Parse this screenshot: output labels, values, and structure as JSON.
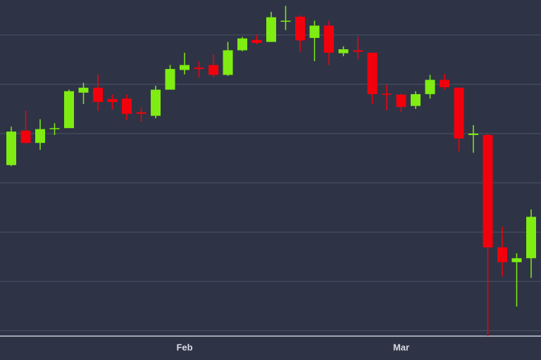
{
  "chart_data": {
    "type": "candlestick",
    "categories": [
      null,
      null,
      null,
      null,
      null,
      null,
      null,
      null,
      null,
      null,
      null,
      null,
      "Feb",
      null,
      null,
      null,
      null,
      null,
      null,
      null,
      null,
      null,
      null,
      null,
      null,
      null,
      null,
      "Mar",
      null,
      null,
      null,
      null,
      null,
      null,
      null,
      null,
      null
    ],
    "open": [
      33.6,
      40.6,
      38.1,
      40.9,
      41.1,
      48.3,
      49.3,
      47.0,
      47.1,
      44.3,
      43.6,
      48.9,
      52.9,
      53.4,
      53.9,
      51.9,
      56.9,
      59.0,
      58.6,
      62.7,
      63.7,
      59.4,
      61.9,
      56.3,
      56.9,
      56.4,
      48.1,
      47.9,
      45.6,
      48.0,
      50.9,
      49.3,
      39.7,
      39.7,
      16.9,
      13.9,
      14.7
    ],
    "high": [
      41.4,
      44.7,
      42.9,
      42.1,
      48.9,
      50.3,
      52.0,
      47.9,
      47.9,
      45.3,
      49.7,
      53.9,
      56.4,
      54.6,
      56.1,
      58.6,
      59.6,
      60.0,
      64.7,
      65.9,
      64.0,
      62.9,
      62.9,
      57.7,
      59.7,
      56.4,
      49.9,
      48.1,
      48.6,
      51.9,
      52.1,
      49.3,
      41.7,
      40.0,
      21.1,
      15.7,
      24.6
    ],
    "low": [
      33.4,
      37.9,
      36.7,
      39.7,
      41.1,
      46.0,
      44.6,
      44.9,
      42.7,
      42.4,
      43.1,
      48.9,
      52.0,
      51.4,
      51.4,
      51.7,
      56.7,
      58.1,
      58.6,
      61.0,
      56.6,
      54.7,
      53.9,
      55.7,
      55.1,
      46.0,
      44.7,
      44.3,
      45.0,
      47.1,
      48.9,
      36.4,
      36.1,
      -1.1,
      11.0,
      4.9,
      10.7
    ],
    "close": [
      40.4,
      38.1,
      40.9,
      41.1,
      48.6,
      49.3,
      46.4,
      46.4,
      44.0,
      44.0,
      48.9,
      53.1,
      53.9,
      53.1,
      51.9,
      56.9,
      59.3,
      58.4,
      63.6,
      62.9,
      58.9,
      61.9,
      56.4,
      57.1,
      56.6,
      48.0,
      47.9,
      45.4,
      48.0,
      50.9,
      49.4,
      39.0,
      40.0,
      16.9,
      13.9,
      14.7,
      23.1
    ],
    "up_color": "#7fec12",
    "down_color": "#f2000c",
    "ylim": [
      -1.1,
      67.1
    ],
    "yticks": [
      0,
      10,
      20,
      30,
      40,
      50,
      60
    ],
    "grid": true
  }
}
